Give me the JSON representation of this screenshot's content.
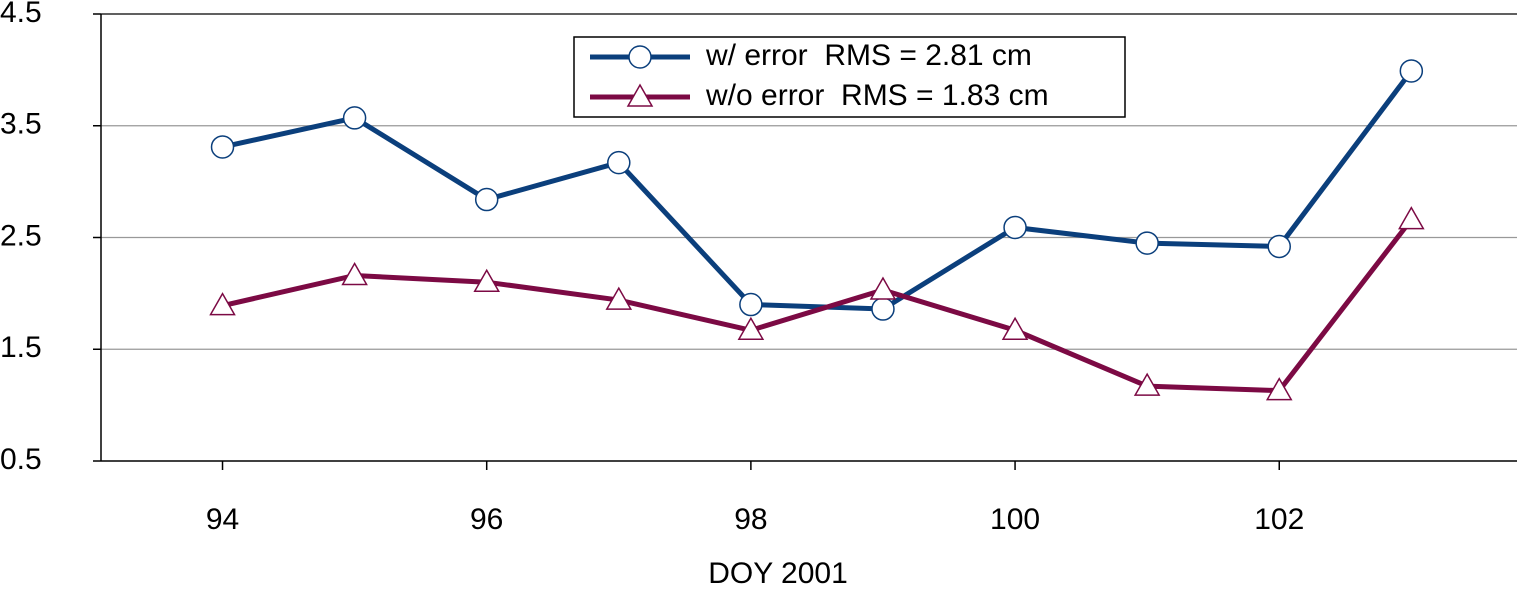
{
  "chart_data": {
    "type": "line",
    "x_label": "DOY 2001",
    "x": [
      94,
      95,
      96,
      97,
      98,
      99,
      100,
      101,
      102,
      103
    ],
    "series": [
      {
        "name": "w/ error  RMS = 2.81 cm",
        "color": "#0b3f7c",
        "marker": "circle",
        "values": [
          3.31,
          3.57,
          2.84,
          3.17,
          1.9,
          1.86,
          2.59,
          2.45,
          2.42,
          3.99
        ]
      },
      {
        "name": "w/o error  RMS = 1.83 cm",
        "color": "#7c0a44",
        "marker": "triangle",
        "values": [
          1.89,
          2.16,
          2.1,
          1.94,
          1.67,
          2.03,
          1.67,
          1.17,
          1.13,
          2.66
        ]
      }
    ],
    "xlim": [
      93.08,
      103.8
    ],
    "xticks": [
      94,
      96,
      98,
      100,
      102
    ],
    "ylim": [
      0.5,
      4.5
    ],
    "yticks": [
      0.5,
      1.5,
      2.5,
      3.5,
      4.5
    ],
    "grid": true,
    "legend": "top"
  }
}
